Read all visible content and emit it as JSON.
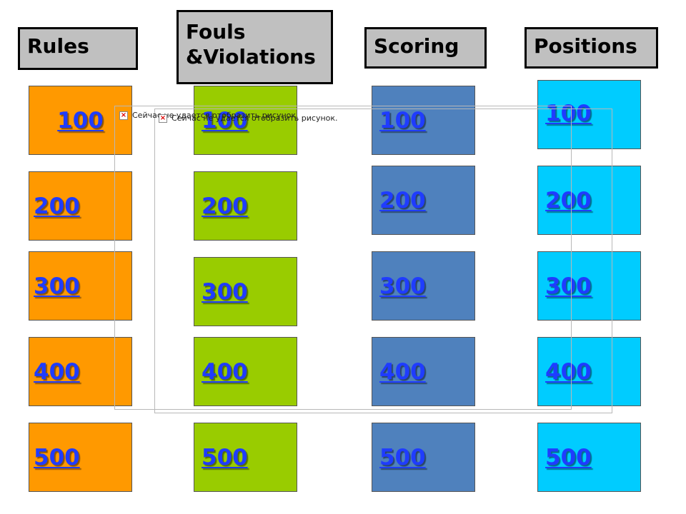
{
  "headers": {
    "rules": "Rules",
    "fouls_line1": "Fouls",
    "fouls_line2": "&Violations",
    "scoring": "Scoring",
    "positions": "Positions"
  },
  "values": [
    "100",
    "200",
    "300",
    "400",
    "500"
  ],
  "broken_image_text_1": "Сейчас не удается отобразить рисунок.",
  "broken_image_text_2": "Сейчас не удается отобразить рисунок.",
  "colors": {
    "rules": "#ff9900",
    "fouls": "#99cc00",
    "scoring": "#4f81bd",
    "positions": "#00ccff",
    "header_bg": "#c0c0c0",
    "link": "#1f3cff"
  }
}
